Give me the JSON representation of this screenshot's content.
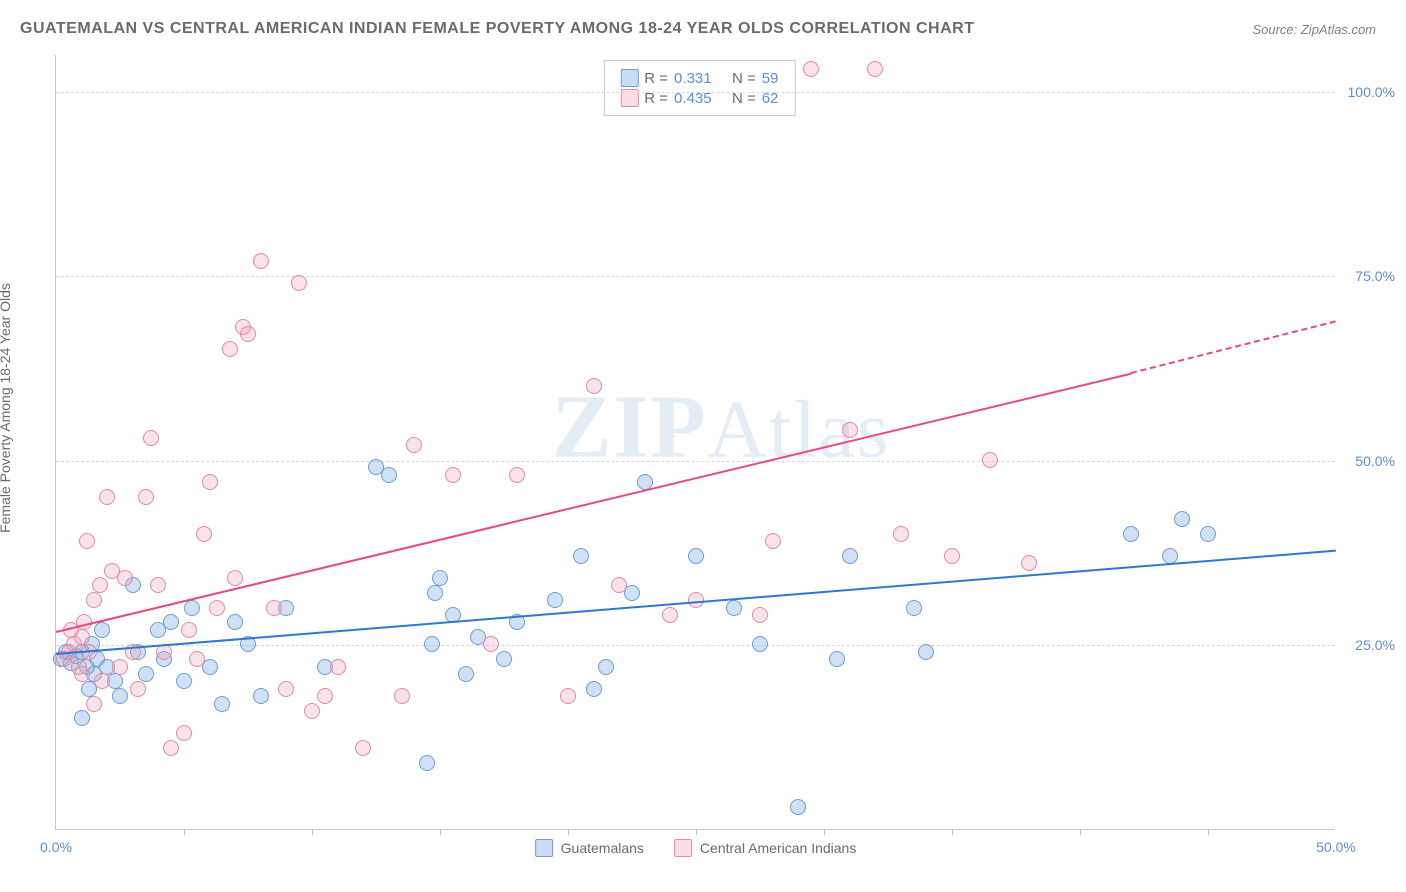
{
  "title": "GUATEMALAN VS CENTRAL AMERICAN INDIAN FEMALE POVERTY AMONG 18-24 YEAR OLDS CORRELATION CHART",
  "source_label": "Source: ZipAtlas.com",
  "y_axis_label": "Female Poverty Among 18-24 Year Olds",
  "watermark_a": "ZIP",
  "watermark_b": "Atlas",
  "chart": {
    "type": "scatter",
    "xlim": [
      0,
      50
    ],
    "ylim": [
      0,
      105
    ],
    "x_ticks": [
      0,
      50
    ],
    "x_tick_labels": [
      "0.0%",
      "50.0%"
    ],
    "x_minor_ticks": [
      5,
      10,
      15,
      20,
      25,
      30,
      35,
      40,
      45
    ],
    "y_ticks": [
      25,
      50,
      75,
      100
    ],
    "y_tick_labels": [
      "25.0%",
      "50.0%",
      "75.0%",
      "100.0%"
    ],
    "background_color": "#ffffff",
    "grid_color": "#d8d8d8",
    "point_radius": 8,
    "title_fontsize": 16,
    "label_fontsize": 14,
    "series": [
      {
        "name": "Guatemalans",
        "color": "#6a9ed6",
        "fill": "rgba(120,170,230,0.35)",
        "r_value": "0.331",
        "n_value": "59",
        "trend": {
          "x1": 0,
          "y1": 24,
          "x2": 50,
          "y2": 38,
          "color": "#2e78d2"
        },
        "points": [
          [
            0.2,
            23
          ],
          [
            0.4,
            24
          ],
          [
            0.6,
            22.5
          ],
          [
            0.8,
            23.5
          ],
          [
            1.0,
            24
          ],
          [
            1.2,
            22
          ],
          [
            1.4,
            25
          ],
          [
            1.6,
            23
          ],
          [
            1.8,
            27
          ],
          [
            1.0,
            15
          ],
          [
            1.3,
            19
          ],
          [
            1.5,
            21
          ],
          [
            2.0,
            22
          ],
          [
            2.3,
            20
          ],
          [
            2.5,
            18
          ],
          [
            3.0,
            33
          ],
          [
            3.2,
            24
          ],
          [
            3.5,
            21
          ],
          [
            4.0,
            27
          ],
          [
            4.2,
            23
          ],
          [
            4.5,
            28
          ],
          [
            5.0,
            20
          ],
          [
            5.3,
            30
          ],
          [
            6.0,
            22
          ],
          [
            6.5,
            17
          ],
          [
            7.0,
            28
          ],
          [
            7.5,
            25
          ],
          [
            8.0,
            18
          ],
          [
            9.0,
            30
          ],
          [
            10.5,
            22
          ],
          [
            12.5,
            49
          ],
          [
            13.0,
            48
          ],
          [
            14.5,
            9
          ],
          [
            14.7,
            25
          ],
          [
            14.8,
            32
          ],
          [
            15.0,
            34
          ],
          [
            15.5,
            29
          ],
          [
            16.0,
            21
          ],
          [
            16.5,
            26
          ],
          [
            17.5,
            23
          ],
          [
            18.0,
            28
          ],
          [
            19.5,
            31
          ],
          [
            20.5,
            37
          ],
          [
            21.0,
            19
          ],
          [
            21.5,
            22
          ],
          [
            22.5,
            32
          ],
          [
            23.0,
            47
          ],
          [
            25.0,
            37
          ],
          [
            26.5,
            30
          ],
          [
            27.5,
            25
          ],
          [
            29.0,
            3
          ],
          [
            30.5,
            23
          ],
          [
            31.0,
            37
          ],
          [
            33.5,
            30
          ],
          [
            34.0,
            24
          ],
          [
            42.0,
            40
          ],
          [
            43.5,
            37
          ],
          [
            44.0,
            42
          ],
          [
            45.0,
            40
          ]
        ]
      },
      {
        "name": "Central American Indians",
        "color": "#e28aa5",
        "fill": "rgba(240,160,185,0.3)",
        "r_value": "0.435",
        "n_value": "62",
        "trend": {
          "x1": 0,
          "y1": 27,
          "x2": 42,
          "y2": 62,
          "color": "#e84a7a",
          "dash_to_x": 50,
          "dash_to_y": 69
        },
        "points": [
          [
            0.3,
            23
          ],
          [
            0.5,
            24
          ],
          [
            0.7,
            25
          ],
          [
            0.9,
            22
          ],
          [
            1.0,
            26
          ],
          [
            1.1,
            28
          ],
          [
            1.3,
            24
          ],
          [
            1.5,
            31
          ],
          [
            1.7,
            33
          ],
          [
            1.2,
            39
          ],
          [
            1.0,
            21
          ],
          [
            1.5,
            17
          ],
          [
            2.0,
            45
          ],
          [
            2.2,
            35
          ],
          [
            2.5,
            22
          ],
          [
            2.7,
            34
          ],
          [
            3.0,
            24
          ],
          [
            3.5,
            45
          ],
          [
            3.7,
            53
          ],
          [
            4.0,
            33
          ],
          [
            4.2,
            24
          ],
          [
            4.5,
            11
          ],
          [
            5.0,
            13
          ],
          [
            5.5,
            23
          ],
          [
            5.8,
            40
          ],
          [
            6.0,
            47
          ],
          [
            6.3,
            30
          ],
          [
            7.0,
            34
          ],
          [
            7.3,
            68
          ],
          [
            7.5,
            67
          ],
          [
            8.0,
            77
          ],
          [
            8.5,
            30
          ],
          [
            9.0,
            19
          ],
          [
            9.5,
            74
          ],
          [
            10.0,
            16
          ],
          [
            11.0,
            22
          ],
          [
            12.0,
            11
          ],
          [
            13.5,
            18
          ],
          [
            14.0,
            52
          ],
          [
            15.5,
            48
          ],
          [
            18.0,
            48
          ],
          [
            20.0,
            18
          ],
          [
            21.0,
            60
          ],
          [
            22.0,
            33
          ],
          [
            24.0,
            29
          ],
          [
            25.0,
            31
          ],
          [
            27.5,
            29
          ],
          [
            29.5,
            103
          ],
          [
            31.0,
            54
          ],
          [
            32.0,
            103
          ],
          [
            33.0,
            40
          ],
          [
            35.0,
            37
          ],
          [
            36.5,
            50
          ],
          [
            38.0,
            36
          ],
          [
            28.0,
            39
          ],
          [
            17.0,
            25
          ],
          [
            6.8,
            65
          ],
          [
            5.2,
            27
          ],
          [
            10.5,
            18
          ],
          [
            3.2,
            19
          ],
          [
            1.8,
            20
          ],
          [
            0.6,
            27
          ]
        ]
      }
    ]
  },
  "legend_top": {
    "r_label": "R =",
    "n_label": "N ="
  },
  "legend_bottom": {
    "items": [
      "Guatemalans",
      "Central American Indians"
    ]
  }
}
